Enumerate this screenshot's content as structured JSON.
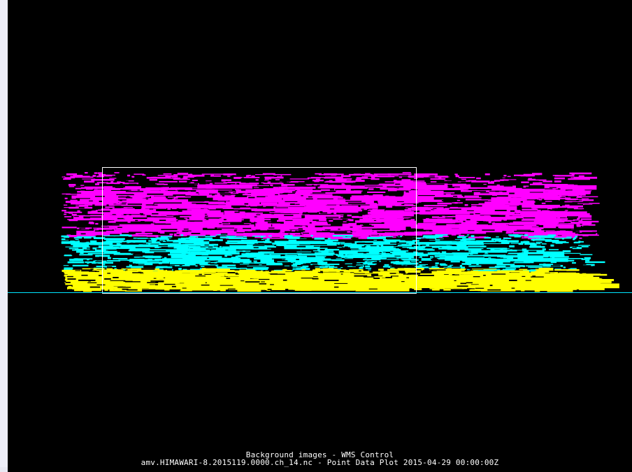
{
  "captions": {
    "line_1": "Background images - WMS Control",
    "line_2": "amv.HIMAWARI-8.2015119.0000.ch_14.nc - Point Data Plot 2015-04-29 00:00:00Z"
  },
  "colors": {
    "background": "#000000",
    "upper_band": "#ff00ff",
    "middle_band": "#00ffff",
    "lower_band": "#ffff00",
    "selection_box": "#ffffff",
    "reference_line": "#00e5ff",
    "side_margin": "#eeeef8"
  },
  "visuals": {
    "data_bands": [
      "magenta",
      "cyan",
      "yellow"
    ],
    "selection": "rectangle",
    "reference": "horizontal-line"
  }
}
